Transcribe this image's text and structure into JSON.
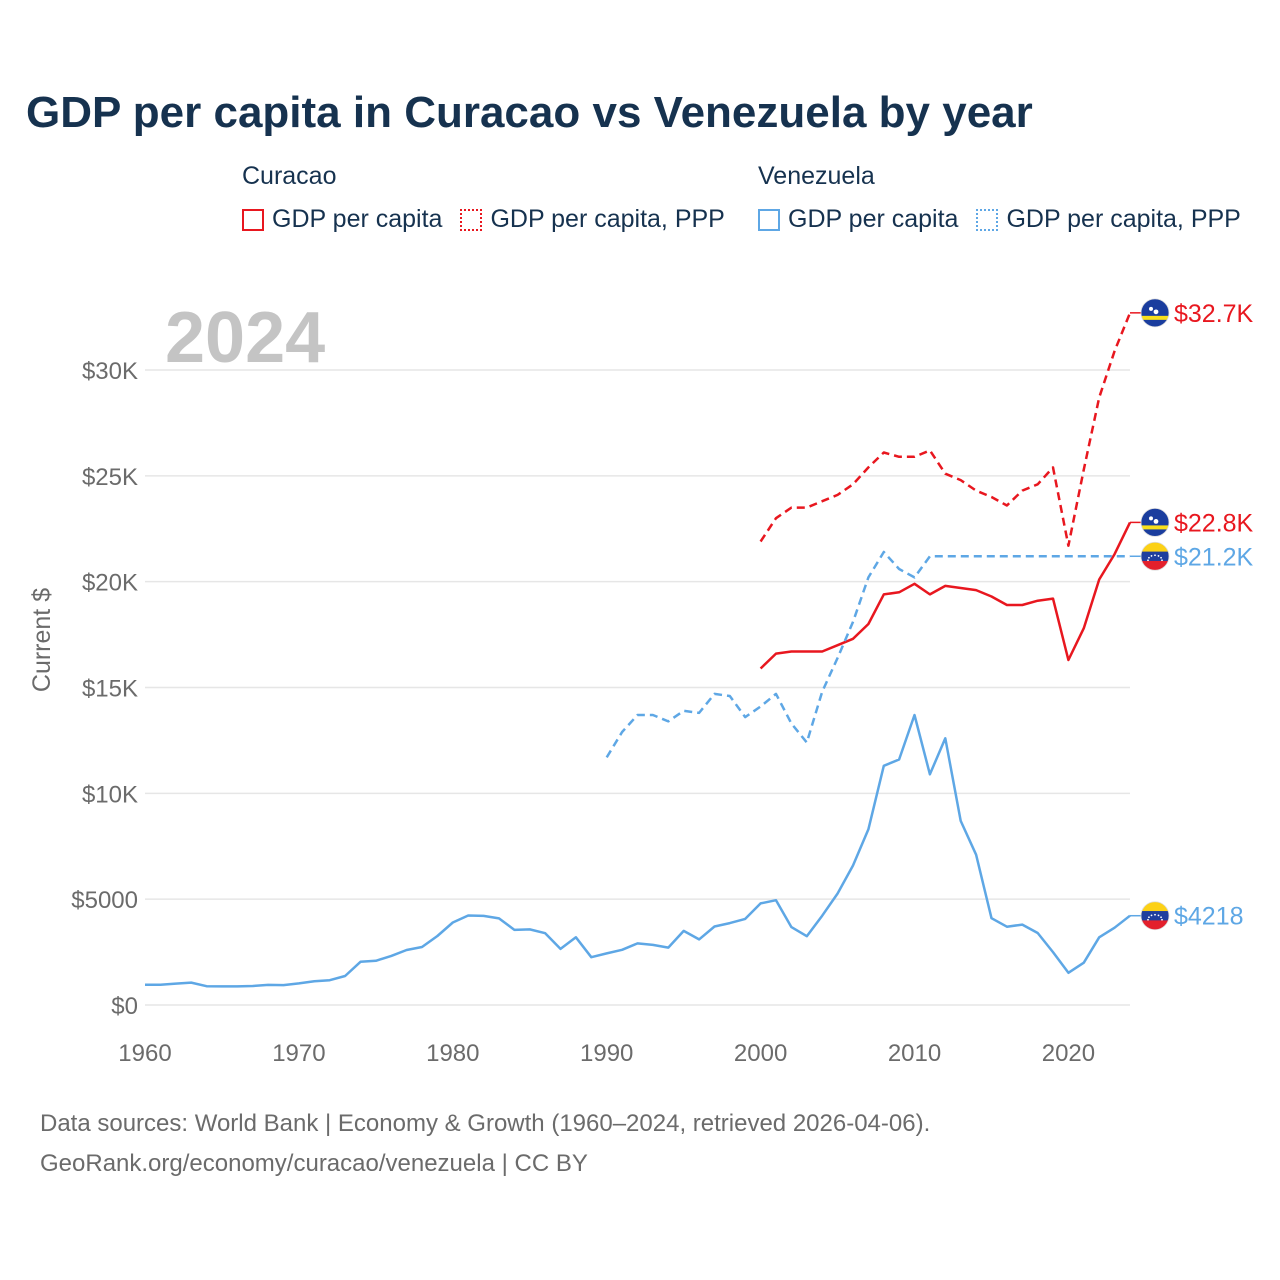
{
  "title": "GDP per capita in Curacao vs Venezuela by year",
  "legend": {
    "groups": [
      {
        "country": "Curacao",
        "items": [
          {
            "label": "GDP per capita",
            "style": "solid",
            "color": "#e8171f"
          },
          {
            "label": "GDP per capita, PPP",
            "style": "dotted",
            "color": "#e8171f"
          }
        ]
      },
      {
        "country": "Venezuela",
        "items": [
          {
            "label": "GDP per capita",
            "style": "solid",
            "color": "#5ea7e5"
          },
          {
            "label": "GDP per capita, PPP",
            "style": "dotted",
            "color": "#5ea7e5"
          }
        ]
      }
    ]
  },
  "year_label": "2024",
  "footer": {
    "line1": "Data sources: World Bank | Economy & Growth (1960–2024, retrieved 2026-04-06).",
    "line2": "GeoRank.org/economy/curacao/venezuela | CC BY"
  },
  "colors": {
    "curacao": "#e8171f",
    "venezuela": "#5ea7e5",
    "grid": "#e6e6e6",
    "axis_text": "#6b6b6b",
    "year_watermark": "#c4c4c4"
  },
  "chart_data": {
    "type": "line",
    "ylabel": "Current $",
    "xlim": [
      1960,
      2024
    ],
    "ylim": [
      0,
      33000
    ],
    "x_ticks": [
      1960,
      1970,
      1980,
      1990,
      2000,
      2010,
      2020
    ],
    "y_ticks": [
      {
        "value": 0,
        "label": "$0"
      },
      {
        "value": 5000,
        "label": "$5000"
      },
      {
        "value": 10000,
        "label": "$10K"
      },
      {
        "value": 15000,
        "label": "$15K"
      },
      {
        "value": 20000,
        "label": "$20K"
      },
      {
        "value": 25000,
        "label": "$25K"
      },
      {
        "value": 30000,
        "label": "$30K"
      }
    ],
    "series": [
      {
        "name": "Curacao GDP per capita, PPP",
        "country": "Curacao",
        "color": "#e8171f",
        "dash": "dashed",
        "end_label": "$32.7K",
        "flag": "curacao",
        "x": [
          2000,
          2001,
          2002,
          2003,
          2004,
          2005,
          2006,
          2007,
          2008,
          2009,
          2010,
          2011,
          2012,
          2013,
          2014,
          2015,
          2016,
          2017,
          2018,
          2019,
          2020,
          2021,
          2022,
          2023,
          2024
        ],
        "values": [
          21900,
          23000,
          23500,
          23500,
          23800,
          24100,
          24600,
          25400,
          26100,
          25900,
          25900,
          26200,
          25100,
          24800,
          24300,
          24000,
          23600,
          24300,
          24600,
          25400,
          21700,
          25300,
          28700,
          30900,
          32700
        ]
      },
      {
        "name": "Curacao GDP per capita",
        "country": "Curacao",
        "color": "#e8171f",
        "dash": "solid",
        "end_label": "$22.8K",
        "flag": "curacao",
        "x": [
          2000,
          2001,
          2002,
          2003,
          2004,
          2005,
          2006,
          2007,
          2008,
          2009,
          2010,
          2011,
          2012,
          2013,
          2014,
          2015,
          2016,
          2017,
          2018,
          2019,
          2020,
          2021,
          2022,
          2023,
          2024
        ],
        "values": [
          15900,
          16600,
          16700,
          16700,
          16700,
          17000,
          17300,
          18000,
          19400,
          19500,
          19900,
          19400,
          19800,
          19700,
          19600,
          19300,
          18900,
          18900,
          19100,
          19200,
          16300,
          17800,
          20100,
          21300,
          22800
        ]
      },
      {
        "name": "Venezuela GDP per capita, PPP",
        "country": "Venezuela",
        "color": "#5ea7e5",
        "dash": "dashed",
        "end_label": "$21.2K",
        "flag": "venezuela",
        "x": [
          1990,
          1991,
          1992,
          1993,
          1994,
          1995,
          1996,
          1997,
          1998,
          1999,
          2000,
          2001,
          2002,
          2003,
          2004,
          2005,
          2006,
          2007,
          2008,
          2009,
          2010,
          2011,
          2024
        ],
        "values": [
          11700,
          12900,
          13700,
          13700,
          13400,
          13900,
          13800,
          14700,
          14600,
          13600,
          14100,
          14700,
          13300,
          12400,
          14800,
          16400,
          18100,
          20200,
          21400,
          20600,
          20200,
          21200,
          21200
        ]
      },
      {
        "name": "Venezuela GDP per capita",
        "country": "Venezuela",
        "color": "#5ea7e5",
        "dash": "solid",
        "end_label": "$4218",
        "flag": "venezuela",
        "x": [
          1960,
          1961,
          1962,
          1963,
          1964,
          1965,
          1966,
          1967,
          1968,
          1969,
          1970,
          1971,
          1972,
          1973,
          1974,
          1975,
          1976,
          1977,
          1978,
          1979,
          1980,
          1981,
          1982,
          1983,
          1984,
          1985,
          1986,
          1987,
          1988,
          1989,
          1990,
          1991,
          1992,
          1993,
          1994,
          1995,
          1996,
          1997,
          1998,
          1999,
          2000,
          2001,
          2002,
          2003,
          2004,
          2005,
          2006,
          2007,
          2008,
          2009,
          2010,
          2011,
          2012,
          2013,
          2014,
          2015,
          2016,
          2017,
          2018,
          2019,
          2020,
          2021,
          2022,
          2023,
          2024
        ],
        "values": [
          960,
          960,
          1010,
          1060,
          890,
          880,
          880,
          900,
          950,
          940,
          1020,
          1120,
          1170,
          1370,
          2040,
          2090,
          2320,
          2600,
          2740,
          3260,
          3900,
          4230,
          4210,
          4090,
          3550,
          3570,
          3390,
          2650,
          3200,
          2260,
          2440,
          2610,
          2910,
          2840,
          2710,
          3500,
          3100,
          3710,
          3870,
          4070,
          4800,
          4950,
          3680,
          3250,
          4220,
          5270,
          6590,
          8300,
          11300,
          11600,
          13700,
          10900,
          12600,
          8700,
          7100,
          4100,
          3700,
          3800,
          3400,
          2500,
          1520,
          2000,
          3200,
          3650,
          4218
        ]
      }
    ]
  }
}
